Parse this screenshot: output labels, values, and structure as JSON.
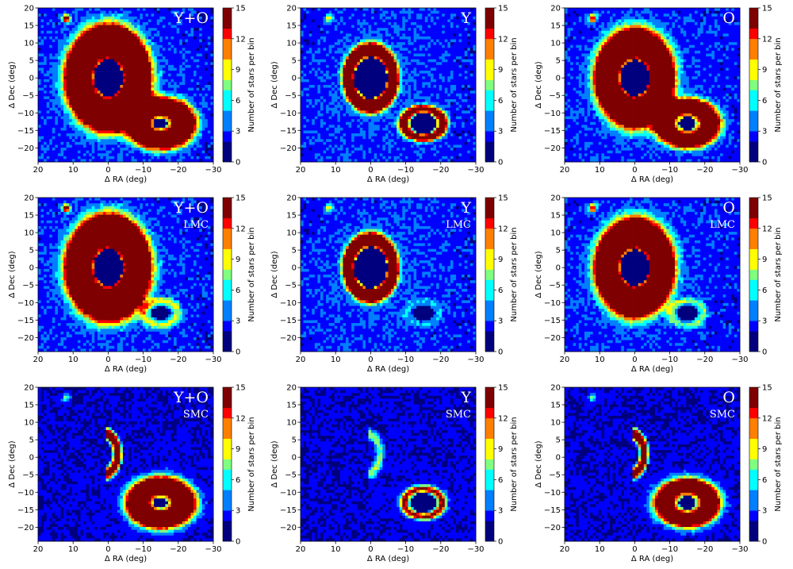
{
  "chart_data": {
    "type": "heatmap",
    "layout": {
      "rows": 3,
      "cols": 3
    },
    "xlabel": "Δ RA (deg)",
    "ylabel": "Δ Dec (deg)",
    "colorbar_label": "Number of stars per bin",
    "xlim": [
      20,
      -30
    ],
    "ylim": [
      -24,
      20
    ],
    "xticks": [
      20,
      10,
      0,
      -10,
      -20,
      -30
    ],
    "xtick_labels": [
      "20",
      "10",
      "0",
      "−10",
      "−20",
      "−30"
    ],
    "yticks": [
      -20,
      -15,
      -10,
      -5,
      0,
      5,
      10,
      15,
      20
    ],
    "ytick_labels": [
      "−20",
      "−15",
      "−10",
      "−5",
      "0",
      "5",
      "10",
      "15",
      "20"
    ],
    "colorbar_range": [
      0,
      15
    ],
    "colorbar_ticks": [
      "0",
      "3",
      "6",
      "9",
      "12",
      "15"
    ],
    "colormap": [
      "#00007f",
      "#0000ff",
      "#007fff",
      "#00ffff",
      "#7fff7f",
      "#ffff00",
      "#ff7f00",
      "#ff0000",
      "#7f0000"
    ],
    "features": {
      "lmc_center": [
        0,
        0
      ],
      "smc_center": [
        -15,
        -13
      ],
      "satellite_cluster": [
        12,
        17
      ]
    },
    "panels": [
      {
        "row": 0,
        "col": 0,
        "label": "Y+O",
        "sublabel": ""
      },
      {
        "row": 0,
        "col": 1,
        "label": "Y",
        "sublabel": ""
      },
      {
        "row": 0,
        "col": 2,
        "label": "O",
        "sublabel": ""
      },
      {
        "row": 1,
        "col": 0,
        "label": "Y+O",
        "sublabel": "LMC"
      },
      {
        "row": 1,
        "col": 1,
        "label": "Y",
        "sublabel": "LMC"
      },
      {
        "row": 1,
        "col": 2,
        "label": "O",
        "sublabel": "LMC"
      },
      {
        "row": 2,
        "col": 0,
        "label": "Y+O",
        "sublabel": "SMC"
      },
      {
        "row": 2,
        "col": 1,
        "label": "Y",
        "sublabel": "SMC"
      },
      {
        "row": 2,
        "col": 2,
        "label": "O",
        "sublabel": "SMC"
      }
    ]
  }
}
